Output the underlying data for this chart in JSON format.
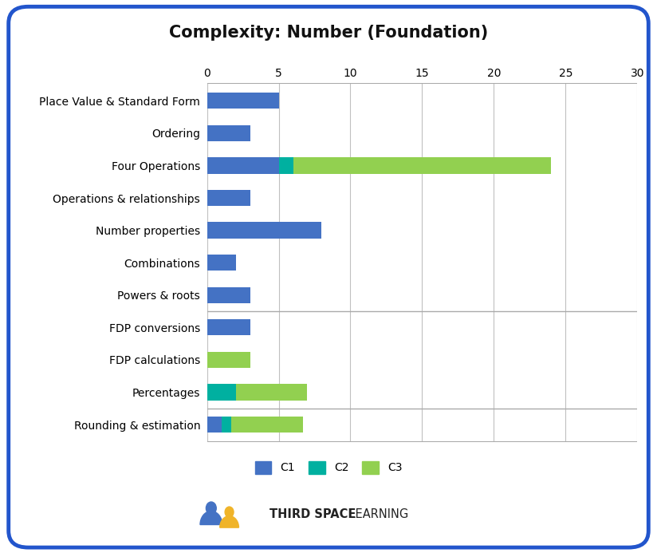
{
  "title": "Complexity: Number (Foundation)",
  "categories": [
    "Place Value & Standard Form",
    "Ordering",
    "Four Operations",
    "Operations & relationships",
    "Number properties",
    "Combinations",
    "Powers & roots",
    "FDP conversions",
    "FDP calculations",
    "Percentages",
    "Rounding & estimation"
  ],
  "c1_values": [
    5,
    3,
    5,
    3,
    8,
    2,
    3,
    3,
    0,
    0,
    1
  ],
  "c2_values": [
    0,
    0,
    1,
    0,
    0,
    0,
    0,
    0,
    0,
    2,
    0.7
  ],
  "c3_values": [
    0,
    0,
    18,
    0,
    0,
    0,
    0,
    0,
    3,
    5,
    5
  ],
  "c1_color": "#4472C4",
  "c2_color": "#00B0A0",
  "c3_color": "#92D050",
  "xlim_max": 30,
  "xticks": [
    0,
    5,
    10,
    15,
    20,
    25,
    30
  ],
  "background_color": "#ffffff",
  "border_color": "#2255CC",
  "legend_labels": [
    "C1",
    "C2",
    "C3"
  ],
  "bar_height": 0.5,
  "title_fontsize": 15,
  "label_fontsize": 10,
  "tick_fontsize": 10,
  "legend_fontsize": 10
}
